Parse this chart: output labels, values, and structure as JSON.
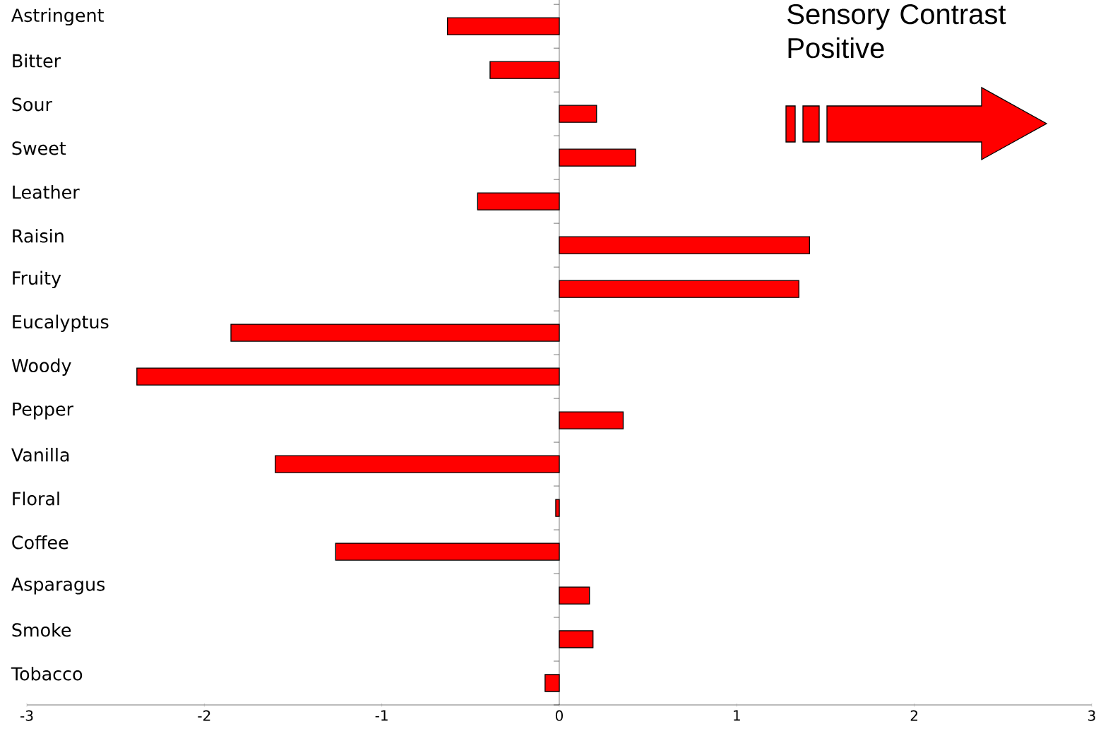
{
  "chart_data": {
    "type": "bar",
    "orientation": "horizontal",
    "title": "Sensory Contrast Positive",
    "categories": [
      "Astringent",
      "Bitter",
      "Sour",
      "Sweet",
      "Leather",
      "Raisin",
      "Fruity",
      "Eucalyptus",
      "Woody",
      "Pepper",
      "Vanilla",
      "Floral",
      "Coffee",
      "Asparagus",
      "Smoke",
      "Tobacco"
    ],
    "values": [
      -0.63,
      -0.39,
      0.21,
      0.43,
      -0.46,
      1.41,
      1.35,
      -1.85,
      -2.38,
      0.36,
      -1.6,
      -0.02,
      -1.26,
      0.17,
      0.19,
      -0.08
    ],
    "color": "#ff0000",
    "xlim": [
      -3,
      3
    ],
    "xticks": [
      -3,
      -2,
      -1,
      0,
      1,
      2,
      3
    ]
  }
}
